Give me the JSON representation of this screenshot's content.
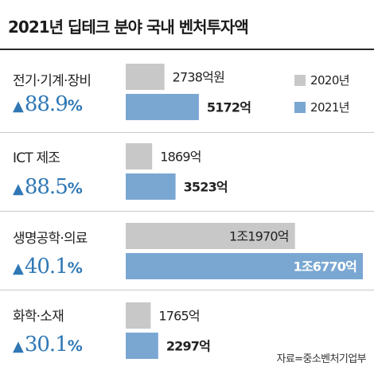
{
  "title": "2021년 딥테크 분야 국내 벤처투자액",
  "source": "자료=중소벤처기업부",
  "colors": {
    "y2020": "#c8c8c8",
    "y2021": "#7aa7d2",
    "growth": "#2f78b5"
  },
  "chart_data": {
    "type": "bar",
    "orientation": "horizontal",
    "title": "2021년 딥테크 분야 국내 벤처투자액",
    "unit": "억원",
    "categories": [
      "전기·기계·장비",
      "ICT 제조",
      "생명공학·의료",
      "화학·소재"
    ],
    "growth_labels": [
      "88.9",
      "88.5",
      "40.1",
      "30.1"
    ],
    "growth_symbol": "▲",
    "growth_unit": "%",
    "series": [
      {
        "name": "2020년",
        "values": [
          2738,
          1869,
          11970,
          1765
        ],
        "labels": [
          "2738억원",
          "1869억",
          "1조1970억",
          "1765억"
        ]
      },
      {
        "name": "2021년",
        "values": [
          5172,
          3523,
          16770,
          2297
        ],
        "labels": [
          "5172억",
          "3523억",
          "1조6770억",
          "2297억"
        ]
      }
    ],
    "legend_position": "top-right",
    "grid": false
  }
}
